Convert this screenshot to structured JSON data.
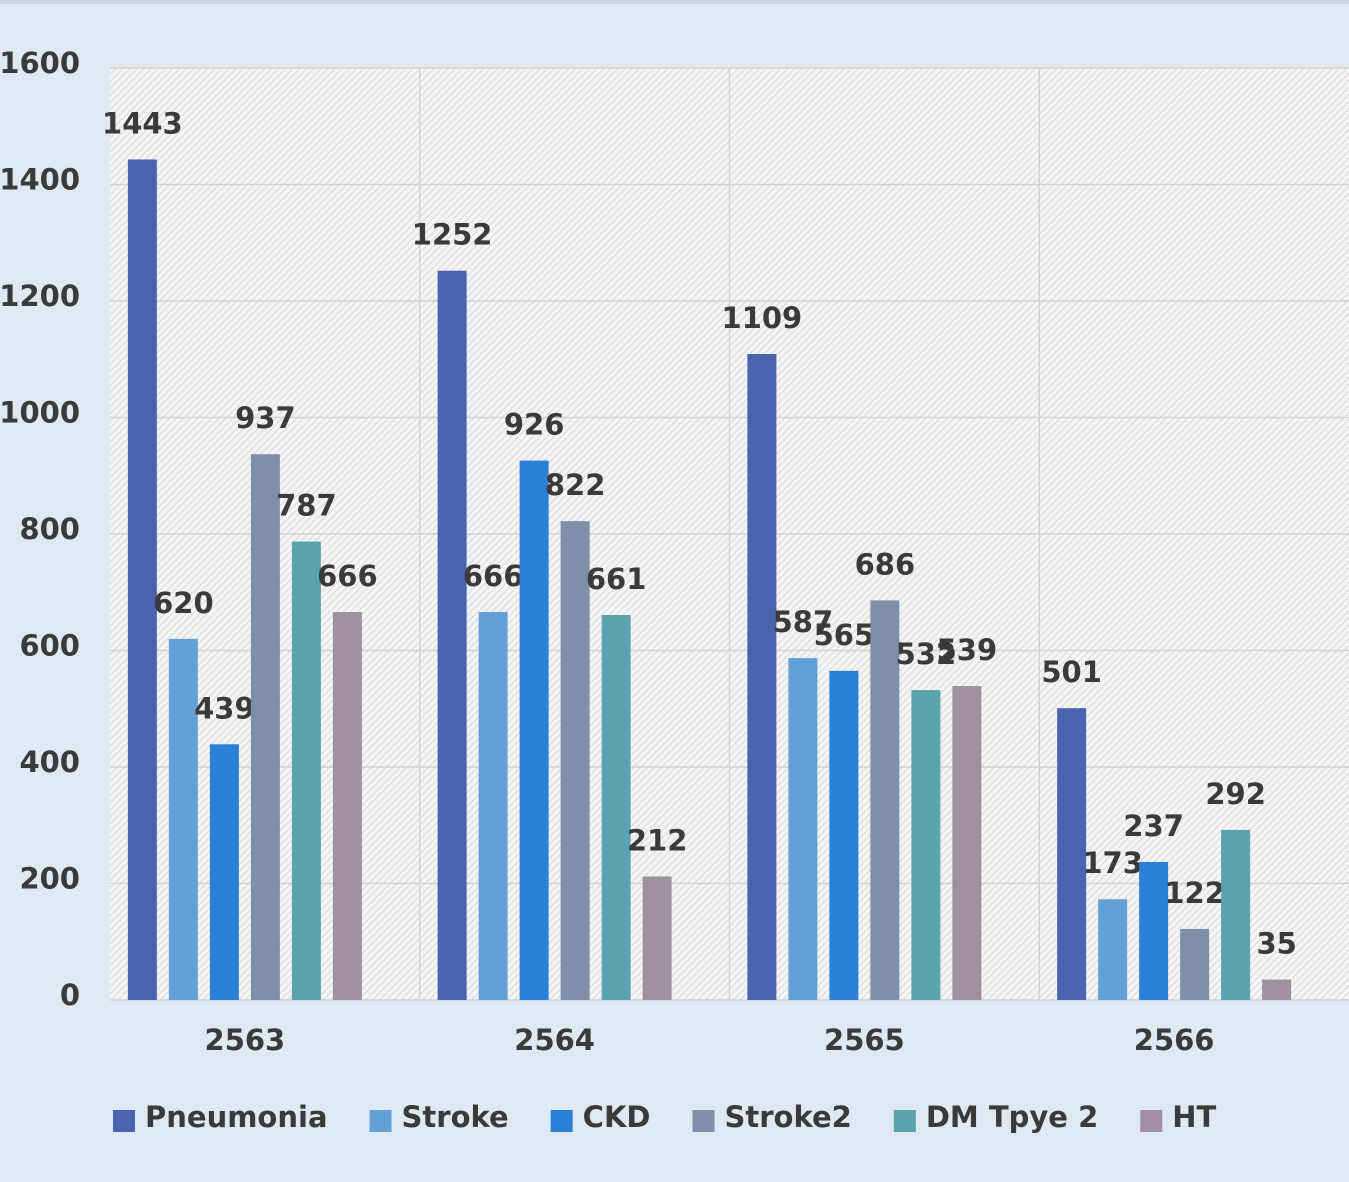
{
  "chart_data": {
    "type": "bar",
    "categories": [
      "2563",
      "2564",
      "2565",
      "2566"
    ],
    "series": [
      {
        "name": "Pneumonia",
        "color": "#4a63ae",
        "values": [
          1443,
          1252,
          1109,
          501
        ]
      },
      {
        "name": "Stroke",
        "color": "#63a0d6",
        "values": [
          620,
          666,
          587,
          173
        ]
      },
      {
        "name": "CKD",
        "color": "#2a7fd8",
        "values": [
          439,
          926,
          565,
          237
        ]
      },
      {
        "name": "Stroke2",
        "color": "#7f8faa",
        "values": [
          937,
          822,
          686,
          122
        ]
      },
      {
        "name": "DM Tpye 2",
        "color": "#58a3ac",
        "values": [
          787,
          661,
          532,
          292
        ]
      },
      {
        "name": "HT",
        "color": "#9e909f",
        "values": [
          666,
          212,
          539,
          35
        ]
      }
    ],
    "ylim": [
      0,
      1600
    ],
    "yticks": [
      0,
      200,
      400,
      600,
      800,
      1000,
      1200,
      1400,
      1600
    ],
    "grid": true,
    "legend": "bottom"
  }
}
